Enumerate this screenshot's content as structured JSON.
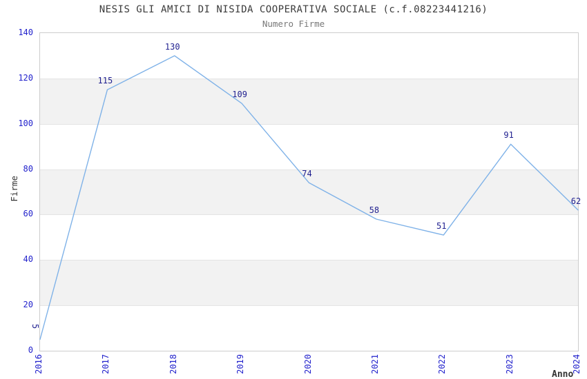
{
  "header": {
    "title": "NESIS GLI AMICI DI NISIDA COOPERATIVA SOCIALE (c.f.08223441216)",
    "subtitle": "Numero Firme"
  },
  "chart_data": {
    "type": "line",
    "title": "NESIS GLI AMICI DI NISIDA COOPERATIVA SOCIALE (c.f.08223441216)",
    "subtitle": "Numero Firme",
    "xlabel": "Anno",
    "ylabel": "Firme",
    "x": [
      2016,
      2017,
      2018,
      2019,
      2020,
      2021,
      2022,
      2023,
      2024
    ],
    "values": [
      5,
      115,
      130,
      109,
      74,
      58,
      51,
      91,
      62
    ],
    "ylim": [
      0,
      140
    ],
    "ytick_step": 20,
    "yticks": [
      0,
      20,
      40,
      60,
      80,
      100,
      120,
      140
    ],
    "grid": "horizontal gridlines with alternating gray bands",
    "legend": "none",
    "markers": "none, value labels above points",
    "colors": {
      "line": "#7fb2e8",
      "tick_label": "#2222cc",
      "data_label": "#1f1f8f",
      "band_gray": "#f2f2f2",
      "gridline": "#e4e4e4",
      "title": "#3a3a3a",
      "subtitle": "#787878",
      "axis_title": "#333333",
      "plot_border": "#cccccc",
      "background": "#ffffff"
    }
  }
}
